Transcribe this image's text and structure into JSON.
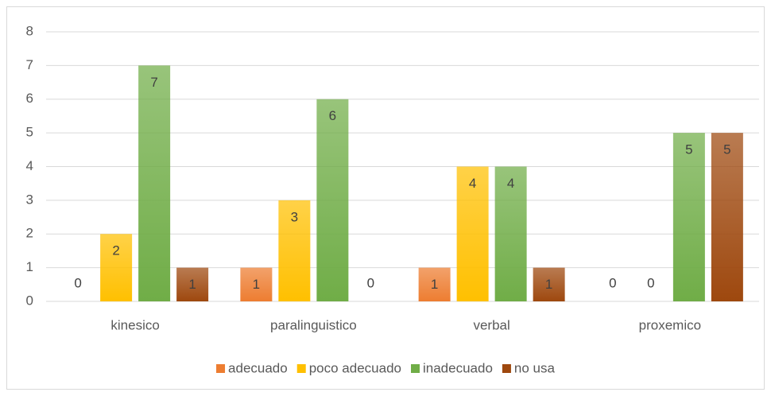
{
  "chart_data": {
    "type": "bar",
    "categories": [
      "kinesico",
      "paralinguistico",
      "verbal",
      "proxemico"
    ],
    "series": [
      {
        "name": "adecuado",
        "color": "#ed7d31",
        "values": [
          0,
          1,
          1,
          0
        ]
      },
      {
        "name": "poco adecuado",
        "color": "#ffc000",
        "values": [
          2,
          3,
          4,
          0
        ]
      },
      {
        "name": "inadecuado",
        "color": "#70ad47",
        "values": [
          7,
          6,
          4,
          5
        ]
      },
      {
        "name": "no usa",
        "color": "#9e480e",
        "values": [
          1,
          0,
          1,
          5
        ]
      }
    ],
    "ylim": [
      0,
      8
    ],
    "yticks": [
      0,
      1,
      2,
      3,
      4,
      5,
      6,
      7,
      8
    ],
    "grid": true,
    "legend": "bottom",
    "data_labels": true
  }
}
